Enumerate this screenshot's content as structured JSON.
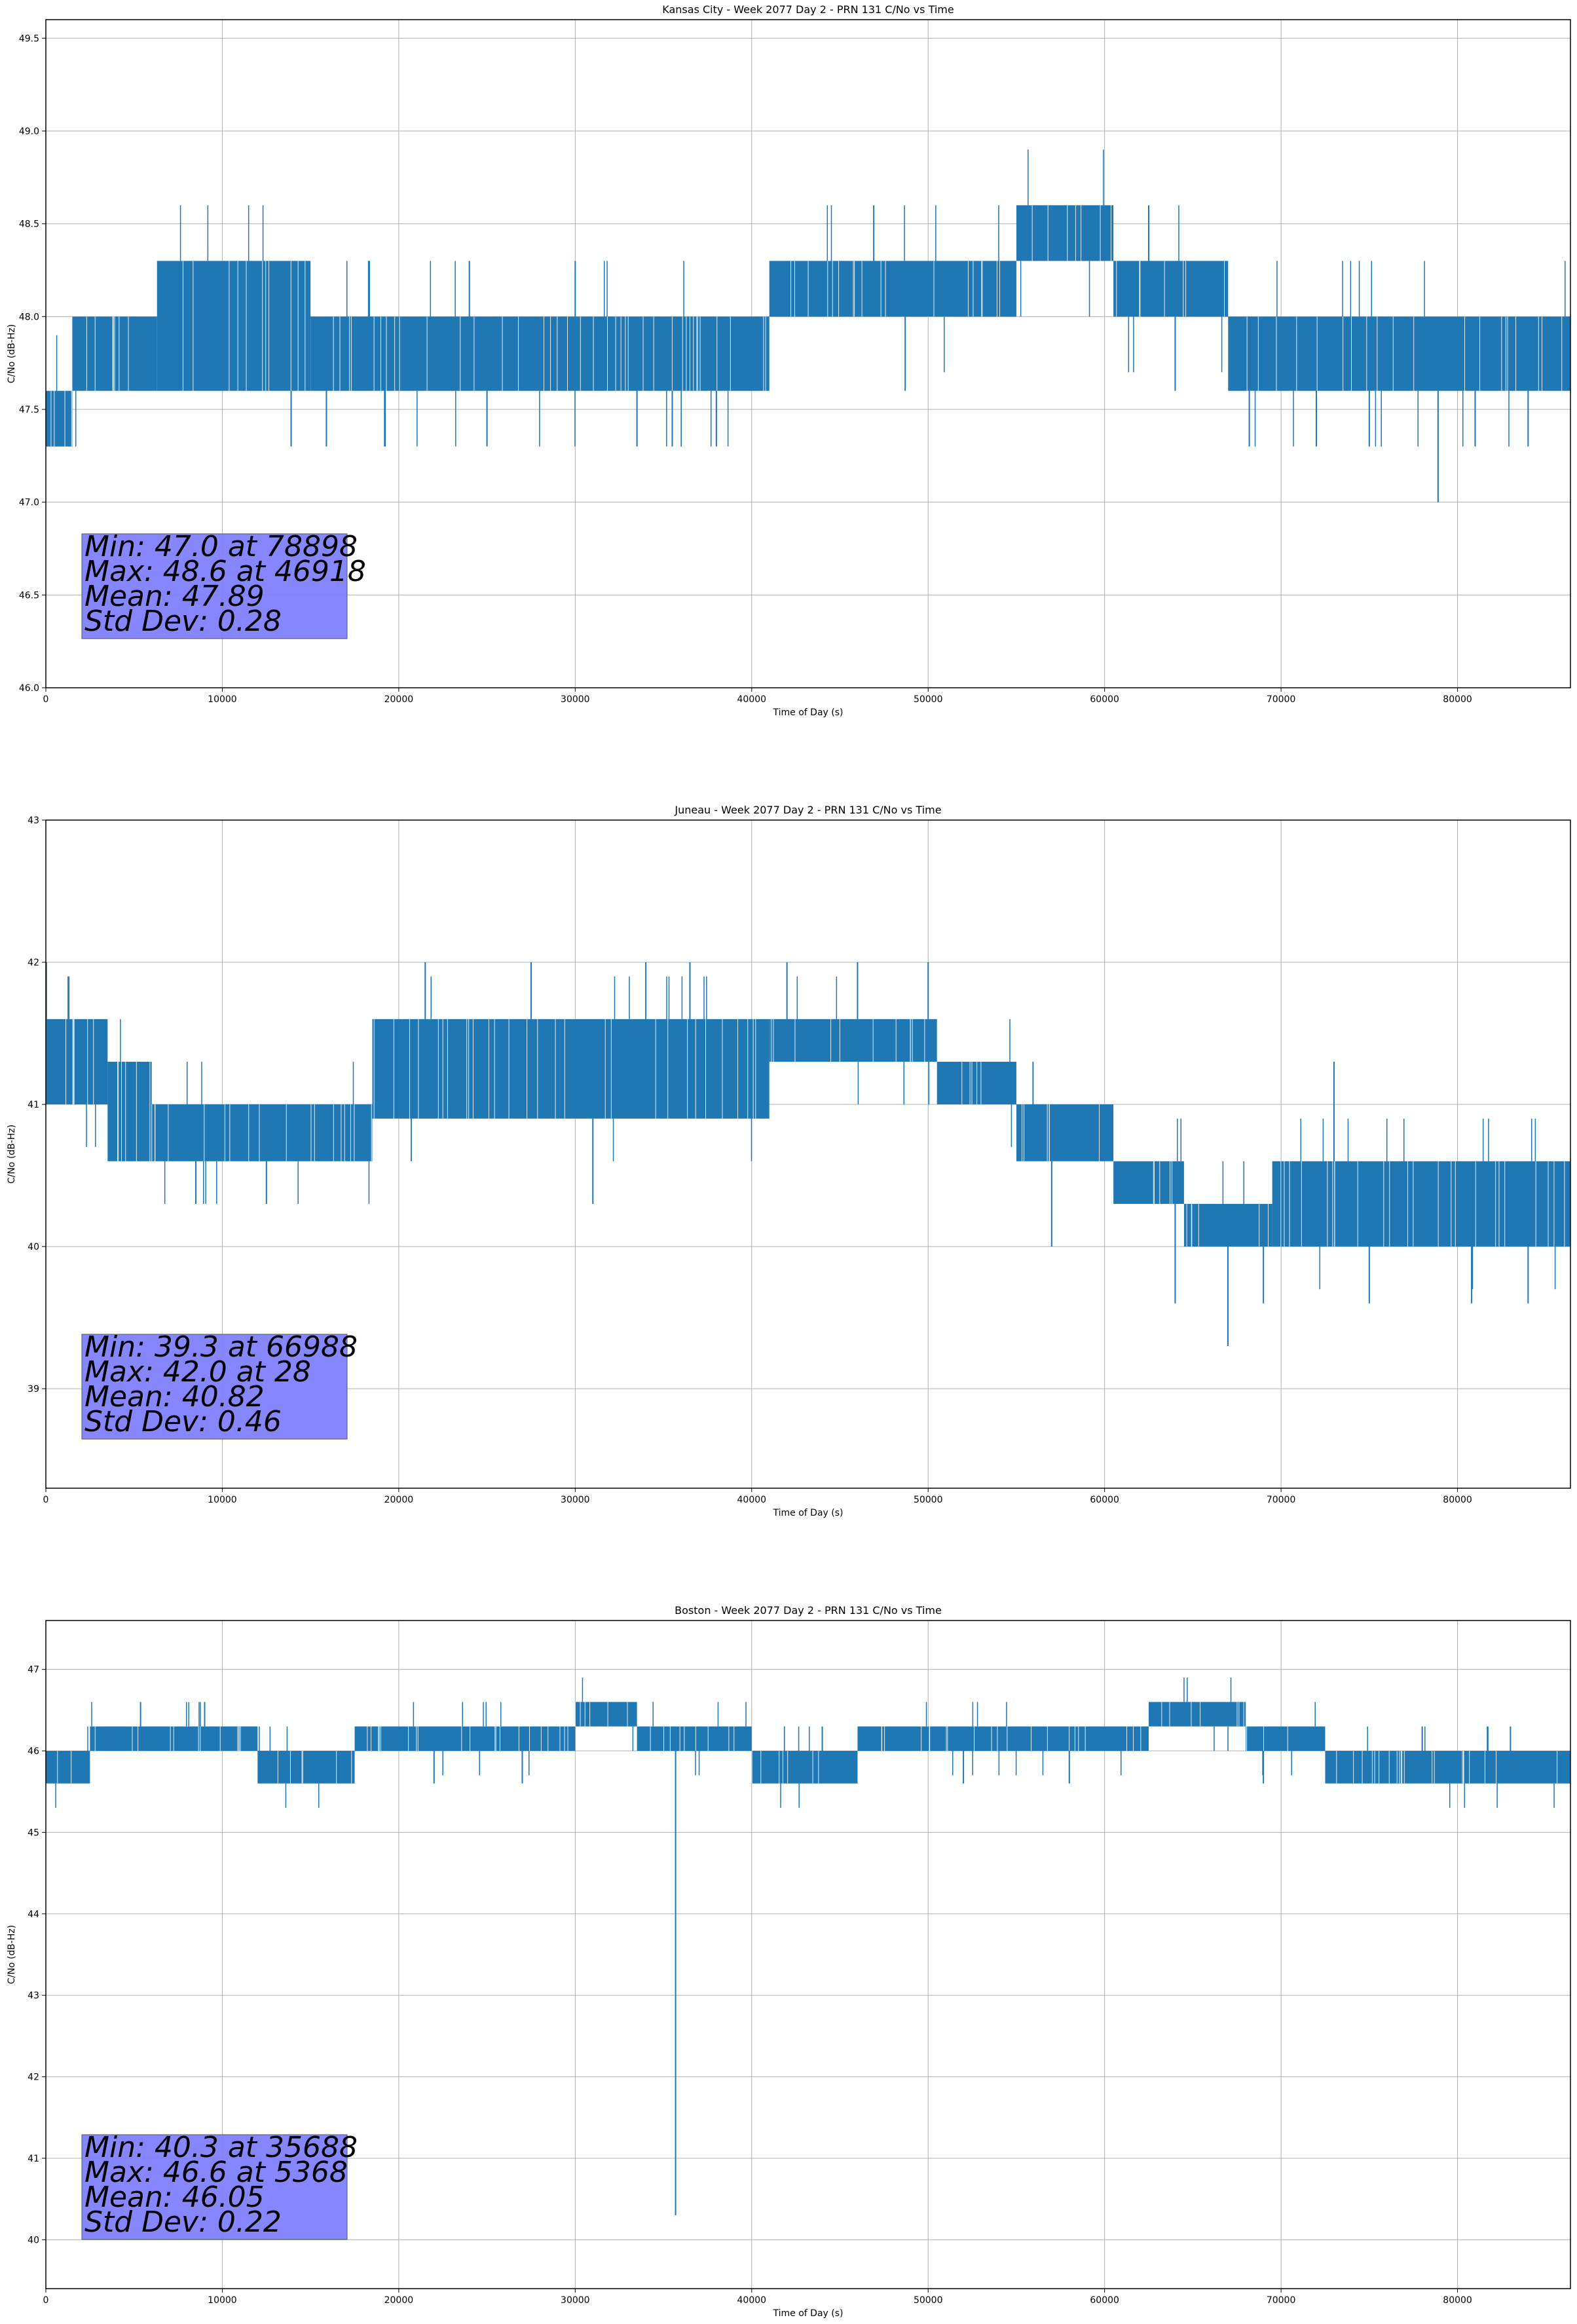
{
  "chart_data": [
    {
      "type": "line",
      "title": "Kansas City - Week 2077 Day 2 - PRN 131 C/No vs Time",
      "xlabel": "Time of Day (s)",
      "ylabel": "C/No (dB-Hz)",
      "xlim": [
        0,
        86400
      ],
      "ylim": [
        46.0,
        49.6
      ],
      "xticks": [
        0,
        10000,
        20000,
        30000,
        40000,
        50000,
        60000,
        70000,
        80000
      ],
      "yticks": [
        46.0,
        46.5,
        47.0,
        47.5,
        48.0,
        48.5,
        49.0,
        49.5
      ],
      "ytick_labels": [
        "46.0",
        "46.5",
        "47.0",
        "47.5",
        "48.0",
        "48.5",
        "49.0",
        "49.5"
      ],
      "grid": true,
      "line_color": "#1f77b4",
      "bands": [
        {
          "x": [
            0,
            1500
          ],
          "range": [
            47.3,
            47.6
          ]
        },
        {
          "x": [
            1500,
            6300
          ],
          "range": [
            47.6,
            48.0
          ]
        },
        {
          "x": [
            6300,
            15000
          ],
          "range": [
            47.6,
            48.3
          ]
        },
        {
          "x": [
            15000,
            41000
          ],
          "range": [
            47.6,
            48.0
          ]
        },
        {
          "x": [
            41000,
            55000
          ],
          "range": [
            48.0,
            48.3
          ]
        },
        {
          "x": [
            55000,
            60500
          ],
          "range": [
            48.3,
            48.6
          ]
        },
        {
          "x": [
            60500,
            67000
          ],
          "range": [
            48.0,
            48.3
          ]
        },
        {
          "x": [
            67000,
            86400
          ],
          "range": [
            47.6,
            48.0
          ]
        }
      ],
      "spikes": [
        {
          "x": 13900,
          "y": 47.3
        },
        {
          "x": 15900,
          "y": 47.3
        },
        {
          "x": 19200,
          "y": 47.3
        },
        {
          "x": 24000,
          "y": 48.3
        },
        {
          "x": 25000,
          "y": 47.3
        },
        {
          "x": 30000,
          "y": 48.3
        },
        {
          "x": 33500,
          "y": 47.3
        },
        {
          "x": 35500,
          "y": 47.3
        },
        {
          "x": 38000,
          "y": 47.3
        },
        {
          "x": 46918,
          "y": 48.6
        },
        {
          "x": 48700,
          "y": 47.6
        },
        {
          "x": 62500,
          "y": 48.6
        },
        {
          "x": 64000,
          "y": 47.6
        },
        {
          "x": 68200,
          "y": 47.3
        },
        {
          "x": 72000,
          "y": 47.3
        },
        {
          "x": 75000,
          "y": 47.3
        },
        {
          "x": 78898,
          "y": 47.0
        },
        {
          "x": 81000,
          "y": 47.3
        },
        {
          "x": 84000,
          "y": 47.3
        }
      ],
      "stats": {
        "min": 47.0,
        "min_at": 78898,
        "max": 48.6,
        "max_at": 46918,
        "mean": 47.89,
        "std_dev": 0.28
      },
      "stats_lines": [
        "Min: 47.0 at 78898",
        "Max: 48.6 at 46918",
        "Mean: 47.89",
        "Std Dev: 0.28"
      ]
    },
    {
      "type": "line",
      "title": "Juneau - Week 2077 Day 2 - PRN 131 C/No vs Time",
      "xlabel": "Time of Day (s)",
      "ylabel": "C/No (dB-Hz)",
      "xlim": [
        0,
        86400
      ],
      "ylim": [
        38.3,
        43.0
      ],
      "xticks": [
        0,
        10000,
        20000,
        30000,
        40000,
        50000,
        60000,
        70000,
        80000
      ],
      "yticks": [
        39,
        40,
        41,
        42,
        43
      ],
      "ytick_labels": [
        "39",
        "40",
        "41",
        "42",
        "43"
      ],
      "grid": true,
      "line_color": "#1f77b4",
      "bands": [
        {
          "x": [
            0,
            3500
          ],
          "range": [
            41.0,
            41.6
          ]
        },
        {
          "x": [
            3500,
            6000
          ],
          "range": [
            40.6,
            41.3
          ]
        },
        {
          "x": [
            6000,
            18500
          ],
          "range": [
            40.6,
            41.0
          ]
        },
        {
          "x": [
            18500,
            41000
          ],
          "range": [
            40.9,
            41.6
          ]
        },
        {
          "x": [
            41000,
            50500
          ],
          "range": [
            41.3,
            41.6
          ]
        },
        {
          "x": [
            50500,
            55000
          ],
          "range": [
            41.0,
            41.3
          ]
        },
        {
          "x": [
            55000,
            60500
          ],
          "range": [
            40.6,
            41.0
          ]
        },
        {
          "x": [
            60500,
            64500
          ],
          "range": [
            40.3,
            40.6
          ]
        },
        {
          "x": [
            64500,
            69500
          ],
          "range": [
            40.0,
            40.3
          ]
        },
        {
          "x": [
            69500,
            86400
          ],
          "range": [
            40.0,
            40.6
          ]
        }
      ],
      "spikes": [
        {
          "x": 28,
          "y": 42.0
        },
        {
          "x": 8500,
          "y": 40.3
        },
        {
          "x": 12500,
          "y": 40.3
        },
        {
          "x": 21500,
          "y": 42.0
        },
        {
          "x": 27500,
          "y": 42.0
        },
        {
          "x": 31000,
          "y": 40.3
        },
        {
          "x": 34000,
          "y": 42.0
        },
        {
          "x": 36500,
          "y": 42.0
        },
        {
          "x": 42000,
          "y": 42.0
        },
        {
          "x": 46000,
          "y": 42.0
        },
        {
          "x": 50000,
          "y": 42.0
        },
        {
          "x": 57000,
          "y": 40.0
        },
        {
          "x": 64000,
          "y": 39.6
        },
        {
          "x": 66988,
          "y": 39.3
        },
        {
          "x": 69000,
          "y": 39.6
        },
        {
          "x": 73000,
          "y": 41.3
        },
        {
          "x": 75000,
          "y": 39.6
        },
        {
          "x": 80800,
          "y": 39.6
        },
        {
          "x": 84000,
          "y": 39.6
        }
      ],
      "stats": {
        "min": 39.3,
        "min_at": 66988,
        "max": 42.0,
        "max_at": 28,
        "mean": 40.82,
        "std_dev": 0.46
      },
      "stats_lines": [
        "Min: 39.3 at 66988",
        "Max: 42.0 at 28",
        "Mean: 40.82",
        "Std Dev: 0.46"
      ]
    },
    {
      "type": "line",
      "title": "Boston - Week 2077 Day 2 - PRN 131 C/No vs Time",
      "xlabel": "Time of Day (s)",
      "ylabel": "C/No (dB-Hz)",
      "xlim": [
        0,
        86400
      ],
      "ylim": [
        39.4,
        47.6
      ],
      "xticks": [
        0,
        10000,
        20000,
        30000,
        40000,
        50000,
        60000,
        70000,
        80000
      ],
      "yticks": [
        40,
        41,
        42,
        43,
        44,
        45,
        46,
        47
      ],
      "ytick_labels": [
        "40",
        "41",
        "42",
        "43",
        "44",
        "45",
        "46",
        "47"
      ],
      "grid": true,
      "line_color": "#1f77b4",
      "bands": [
        {
          "x": [
            0,
            2500
          ],
          "range": [
            45.6,
            46.0
          ]
        },
        {
          "x": [
            2500,
            12000
          ],
          "range": [
            46.0,
            46.3
          ]
        },
        {
          "x": [
            12000,
            17500
          ],
          "range": [
            45.6,
            46.0
          ]
        },
        {
          "x": [
            17500,
            30000
          ],
          "range": [
            46.0,
            46.3
          ]
        },
        {
          "x": [
            30000,
            33500
          ],
          "range": [
            46.3,
            46.6
          ]
        },
        {
          "x": [
            33500,
            40000
          ],
          "range": [
            46.0,
            46.3
          ]
        },
        {
          "x": [
            40000,
            46000
          ],
          "range": [
            45.6,
            46.0
          ]
        },
        {
          "x": [
            46000,
            62500
          ],
          "range": [
            46.0,
            46.3
          ]
        },
        {
          "x": [
            62500,
            68000
          ],
          "range": [
            46.3,
            46.6
          ]
        },
        {
          "x": [
            68000,
            72500
          ],
          "range": [
            46.0,
            46.3
          ]
        },
        {
          "x": [
            72500,
            86400
          ],
          "range": [
            45.6,
            46.0
          ]
        }
      ],
      "spikes": [
        {
          "x": 5368,
          "y": 46.6
        },
        {
          "x": 9000,
          "y": 46.6
        },
        {
          "x": 15000,
          "y": 45.6
        },
        {
          "x": 22000,
          "y": 45.6
        },
        {
          "x": 27000,
          "y": 45.6
        },
        {
          "x": 35688,
          "y": 40.3
        },
        {
          "x": 44000,
          "y": 46.3
        },
        {
          "x": 52000,
          "y": 45.6
        },
        {
          "x": 58000,
          "y": 45.6
        },
        {
          "x": 69000,
          "y": 45.6
        },
        {
          "x": 78000,
          "y": 46.3
        },
        {
          "x": 83000,
          "y": 46.3
        }
      ],
      "stats": {
        "min": 40.3,
        "min_at": 35688,
        "max": 46.6,
        "max_at": 5368,
        "mean": 46.05,
        "std_dev": 0.22
      },
      "stats_lines": [
        "Min: 40.3 at 35688",
        "Max: 46.6 at 5368",
        "Mean: 46.05",
        "Std Dev: 0.22"
      ]
    }
  ]
}
